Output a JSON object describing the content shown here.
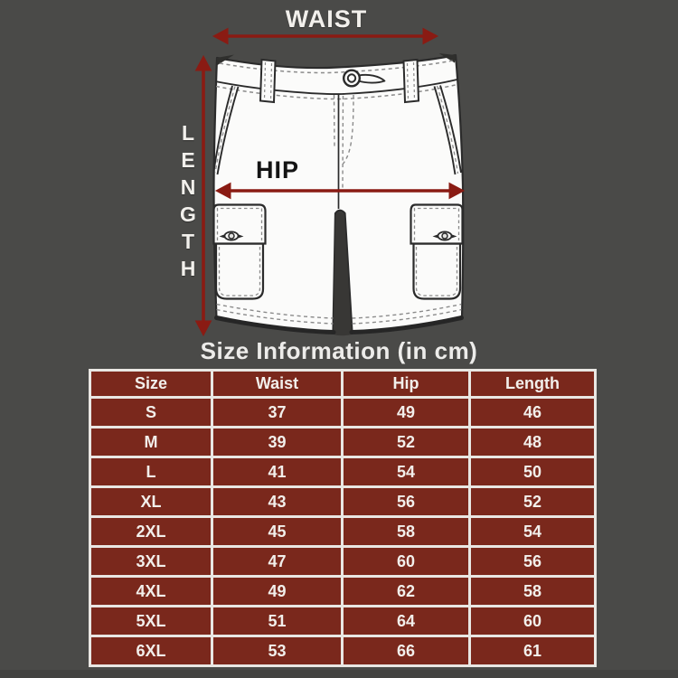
{
  "background_color": "#4a4a48",
  "diagram": {
    "waist_label": "WAIST",
    "hip_label": "HIP",
    "length_label": "LENGTH",
    "arrow_color": "#8a1b13",
    "garment": "cargo-shorts-line-art"
  },
  "title": "Size Information (in cm)",
  "table": {
    "columns": [
      "Size",
      "Waist",
      "Hip",
      "Length"
    ],
    "rows": [
      [
        "S",
        "37",
        "49",
        "46"
      ],
      [
        "M",
        "39",
        "52",
        "48"
      ],
      [
        "L",
        "41",
        "54",
        "50"
      ],
      [
        "XL",
        "43",
        "56",
        "52"
      ],
      [
        "2XL",
        "45",
        "58",
        "54"
      ],
      [
        "3XL",
        "47",
        "60",
        "56"
      ],
      [
        "4XL",
        "49",
        "62",
        "58"
      ],
      [
        "5XL",
        "51",
        "64",
        "60"
      ],
      [
        "6XL",
        "53",
        "66",
        "61"
      ]
    ],
    "cell_color": "#7a281c",
    "border_color": "#e9e7e3",
    "text_color": "#f2efeb"
  }
}
